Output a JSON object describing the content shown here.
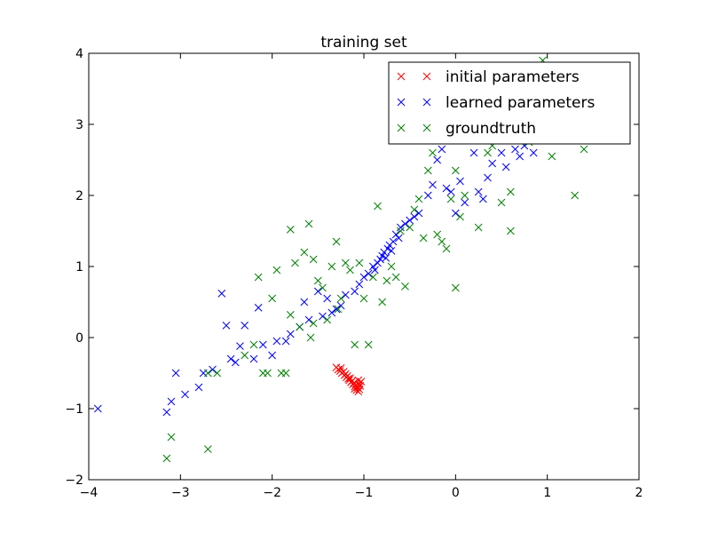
{
  "chart_data": {
    "type": "scatter",
    "title": "training set",
    "xlabel": "",
    "ylabel": "",
    "xlim": [
      -4,
      2
    ],
    "ylim": [
      -2,
      4
    ],
    "xticks": [
      -4,
      -3,
      -2,
      -1,
      0,
      1,
      2
    ],
    "yticks": [
      -2,
      -1,
      0,
      1,
      2,
      3,
      4
    ],
    "xtick_labels": [
      "−4",
      "−3",
      "−2",
      "−1",
      "0",
      "1",
      "2"
    ],
    "ytick_labels": [
      "−2",
      "−1",
      "0",
      "1",
      "2",
      "3",
      "4"
    ],
    "grid": false,
    "marker": "x",
    "legend_position": "top-right",
    "series": [
      {
        "name": "initial parameters",
        "color": "#ff0000",
        "points": [
          [
            -1.3,
            -0.42
          ],
          [
            -1.28,
            -0.45
          ],
          [
            -1.26,
            -0.47
          ],
          [
            -1.25,
            -0.43
          ],
          [
            -1.24,
            -0.5
          ],
          [
            -1.22,
            -0.48
          ],
          [
            -1.21,
            -0.53
          ],
          [
            -1.2,
            -0.51
          ],
          [
            -1.19,
            -0.56
          ],
          [
            -1.18,
            -0.54
          ],
          [
            -1.17,
            -0.58
          ],
          [
            -1.16,
            -0.6
          ],
          [
            -1.15,
            -0.57
          ],
          [
            -1.14,
            -0.63
          ],
          [
            -1.13,
            -0.61
          ],
          [
            -1.12,
            -0.66
          ],
          [
            -1.11,
            -0.64
          ],
          [
            -1.1,
            -0.69
          ],
          [
            -1.1,
            -0.72
          ],
          [
            -1.09,
            -0.67
          ],
          [
            -1.08,
            -0.74
          ],
          [
            -1.07,
            -0.7
          ],
          [
            -1.06,
            -0.76
          ],
          [
            -1.05,
            -0.73
          ],
          [
            -1.05,
            -0.65
          ],
          [
            -1.04,
            -0.68
          ],
          [
            -1.03,
            -0.62
          ],
          [
            -1.06,
            -0.6
          ]
        ]
      },
      {
        "name": "learned parameters",
        "color": "#0000ff",
        "points": [
          [
            -3.9,
            -1.0
          ],
          [
            -3.15,
            -1.05
          ],
          [
            -3.1,
            -0.9
          ],
          [
            -3.05,
            -0.5
          ],
          [
            -2.95,
            -0.8
          ],
          [
            -2.8,
            -0.7
          ],
          [
            -2.75,
            -0.5
          ],
          [
            -2.65,
            -0.45
          ],
          [
            -2.55,
            0.62
          ],
          [
            -2.5,
            0.17
          ],
          [
            -2.45,
            -0.3
          ],
          [
            -2.4,
            -0.35
          ],
          [
            -2.35,
            -0.12
          ],
          [
            -2.3,
            0.17
          ],
          [
            -2.2,
            -0.3
          ],
          [
            -2.15,
            0.42
          ],
          [
            -2.1,
            -0.1
          ],
          [
            -2.0,
            -0.25
          ],
          [
            -1.95,
            -0.05
          ],
          [
            -1.85,
            -0.05
          ],
          [
            -1.8,
            0.05
          ],
          [
            -1.7,
            0.15
          ],
          [
            -1.65,
            0.5
          ],
          [
            -1.6,
            0.25
          ],
          [
            -1.5,
            0.65
          ],
          [
            -1.45,
            0.3
          ],
          [
            -1.4,
            0.55
          ],
          [
            -1.35,
            0.35
          ],
          [
            -1.3,
            0.4
          ],
          [
            -1.25,
            0.45
          ],
          [
            -1.2,
            0.6
          ],
          [
            -1.1,
            0.65
          ],
          [
            -1.05,
            0.75
          ],
          [
            -1.0,
            0.85
          ],
          [
            -0.95,
            0.9
          ],
          [
            -0.9,
            1.0
          ],
          [
            -0.88,
            0.95
          ],
          [
            -0.85,
            1.05
          ],
          [
            -0.82,
            1.1
          ],
          [
            -0.8,
            1.15
          ],
          [
            -0.78,
            1.2
          ],
          [
            -0.76,
            1.12
          ],
          [
            -0.74,
            1.25
          ],
          [
            -0.72,
            1.3
          ],
          [
            -0.7,
            1.22
          ],
          [
            -0.68,
            1.35
          ],
          [
            -0.65,
            1.45
          ],
          [
            -0.62,
            1.4
          ],
          [
            -0.6,
            1.55
          ],
          [
            -0.55,
            1.6
          ],
          [
            -0.5,
            1.65
          ],
          [
            -0.45,
            1.7
          ],
          [
            -0.4,
            1.75
          ],
          [
            -0.3,
            2.0
          ],
          [
            -0.25,
            2.15
          ],
          [
            -0.2,
            2.5
          ],
          [
            -0.15,
            2.65
          ],
          [
            -0.1,
            2.1
          ],
          [
            -0.05,
            2.05
          ],
          [
            0.0,
            1.75
          ],
          [
            0.05,
            2.2
          ],
          [
            0.1,
            1.9
          ],
          [
            0.2,
            2.6
          ],
          [
            0.25,
            2.05
          ],
          [
            0.3,
            1.95
          ],
          [
            0.35,
            2.25
          ],
          [
            0.4,
            2.45
          ],
          [
            0.5,
            2.6
          ],
          [
            0.55,
            2.4
          ],
          [
            0.65,
            2.65
          ],
          [
            0.7,
            2.55
          ],
          [
            0.75,
            2.7
          ],
          [
            0.85,
            2.6
          ]
        ]
      },
      {
        "name": "groundtruth",
        "color": "#008000",
        "points": [
          [
            -3.15,
            -1.7
          ],
          [
            -3.1,
            -1.4
          ],
          [
            -2.7,
            -1.57
          ],
          [
            -2.7,
            -0.5
          ],
          [
            -2.6,
            -0.5
          ],
          [
            -2.3,
            -0.25
          ],
          [
            -2.2,
            -0.1
          ],
          [
            -2.15,
            0.85
          ],
          [
            -2.1,
            -0.5
          ],
          [
            -2.05,
            -0.5
          ],
          [
            -2.0,
            0.55
          ],
          [
            -1.95,
            0.95
          ],
          [
            -1.9,
            -0.5
          ],
          [
            -1.85,
            -0.5
          ],
          [
            -1.8,
            1.52
          ],
          [
            -1.8,
            0.32
          ],
          [
            -1.75,
            1.05
          ],
          [
            -1.7,
            0.15
          ],
          [
            -1.65,
            1.2
          ],
          [
            -1.6,
            1.6
          ],
          [
            -1.58,
            0.0
          ],
          [
            -1.55,
            0.2
          ],
          [
            -1.55,
            1.1
          ],
          [
            -1.5,
            0.8
          ],
          [
            -1.45,
            0.7
          ],
          [
            -1.4,
            0.25
          ],
          [
            -1.35,
            1.0
          ],
          [
            -1.3,
            1.35
          ],
          [
            -1.28,
            0.4
          ],
          [
            -1.25,
            0.55
          ],
          [
            -1.2,
            1.05
          ],
          [
            -1.15,
            0.95
          ],
          [
            -1.1,
            -0.1
          ],
          [
            -1.05,
            1.05
          ],
          [
            -1.0,
            0.55
          ],
          [
            -0.95,
            -0.1
          ],
          [
            -0.9,
            0.85
          ],
          [
            -0.85,
            1.85
          ],
          [
            -0.8,
            0.5
          ],
          [
            -0.75,
            0.8
          ],
          [
            -0.7,
            1.0
          ],
          [
            -0.65,
            0.85
          ],
          [
            -0.6,
            1.5
          ],
          [
            -0.55,
            0.72
          ],
          [
            -0.5,
            1.55
          ],
          [
            -0.45,
            1.8
          ],
          [
            -0.4,
            1.95
          ],
          [
            -0.35,
            1.4
          ],
          [
            -0.3,
            2.35
          ],
          [
            -0.25,
            2.6
          ],
          [
            -0.2,
            1.45
          ],
          [
            -0.15,
            1.35
          ],
          [
            -0.1,
            1.25
          ],
          [
            -0.05,
            1.95
          ],
          [
            0.0,
            2.35
          ],
          [
            0.0,
            0.7
          ],
          [
            0.05,
            1.7
          ],
          [
            0.1,
            2.0
          ],
          [
            0.25,
            1.55
          ],
          [
            0.35,
            2.6
          ],
          [
            0.4,
            2.7
          ],
          [
            0.5,
            1.9
          ],
          [
            0.6,
            2.05
          ],
          [
            0.6,
            1.5
          ],
          [
            0.8,
            2.75
          ],
          [
            0.95,
            3.9
          ],
          [
            1.05,
            2.55
          ],
          [
            1.3,
            2.0
          ],
          [
            1.4,
            2.65
          ]
        ]
      }
    ]
  }
}
